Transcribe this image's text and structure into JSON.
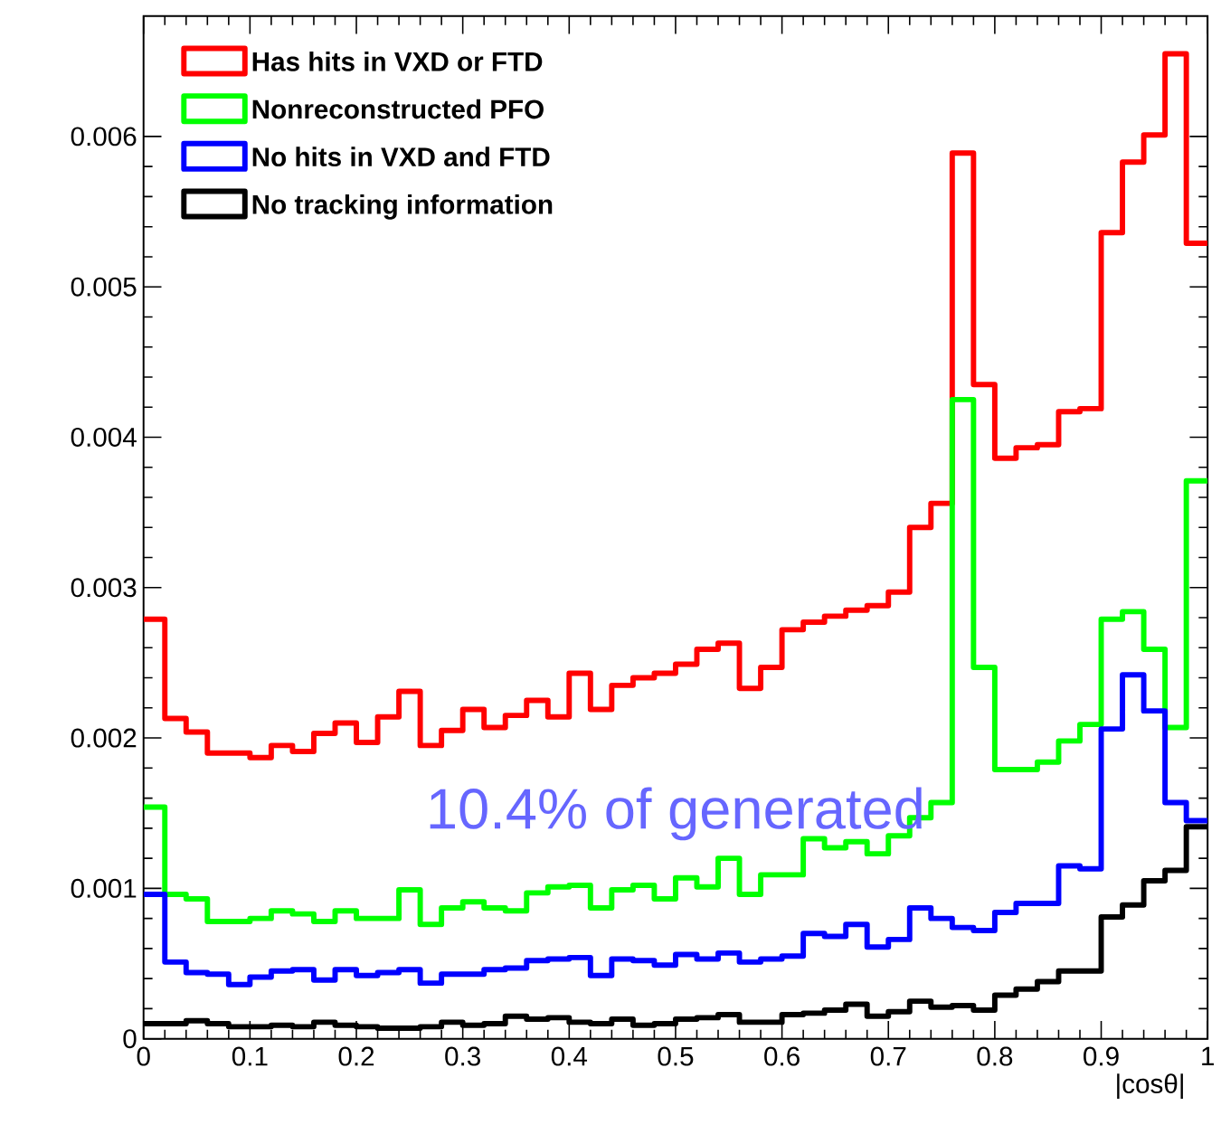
{
  "chart_data": {
    "type": "histogram",
    "xlabel": "|cosθ|",
    "bins": [
      0,
      0.02,
      0.04,
      0.06,
      0.08,
      0.1,
      0.12,
      0.14,
      0.16,
      0.18,
      0.2,
      0.22,
      0.24,
      0.26,
      0.28,
      0.3,
      0.32,
      0.34,
      0.36,
      0.38,
      0.4,
      0.42,
      0.44,
      0.46,
      0.48,
      0.5,
      0.52,
      0.54,
      0.56,
      0.58,
      0.6,
      0.62,
      0.64,
      0.66,
      0.68,
      0.7,
      0.72,
      0.74,
      0.76,
      0.78,
      0.8,
      0.82,
      0.84,
      0.86,
      0.88,
      0.9,
      0.92,
      0.94,
      0.96,
      0.98,
      1
    ],
    "series": [
      {
        "name": "Has hits in VXD or FTD",
        "color": "#ff0000",
        "values": [
          0.00279,
          0.00213,
          0.00204,
          0.0019,
          0.0019,
          0.00187,
          0.00195,
          0.00191,
          0.00203,
          0.0021,
          0.00197,
          0.00214,
          0.00231,
          0.00195,
          0.00205,
          0.00219,
          0.00207,
          0.00215,
          0.00225,
          0.00214,
          0.00243,
          0.00219,
          0.00235,
          0.0024,
          0.00243,
          0.00249,
          0.00259,
          0.00263,
          0.00233,
          0.00247,
          0.00272,
          0.00277,
          0.00281,
          0.00285,
          0.00288,
          0.00297,
          0.0034,
          0.00356,
          0.00589,
          0.00435,
          0.00386,
          0.00393,
          0.00395,
          0.00417,
          0.00419,
          0.00536,
          0.00583,
          0.00601,
          0.00655,
          0.00529
        ]
      },
      {
        "name": "Nonreconstructed PFO",
        "color": "#00ff00",
        "values": [
          0.00154,
          0.00096,
          0.00093,
          0.00078,
          0.00078,
          0.0008,
          0.00085,
          0.00083,
          0.00078,
          0.00085,
          0.0008,
          0.0008,
          0.00099,
          0.00076,
          0.00087,
          0.00091,
          0.00087,
          0.00085,
          0.00097,
          0.00101,
          0.00102,
          0.00087,
          0.00099,
          0.00102,
          0.00093,
          0.00107,
          0.00101,
          0.0012,
          0.00096,
          0.00109,
          0.00109,
          0.00133,
          0.00127,
          0.00131,
          0.00123,
          0.00135,
          0.00147,
          0.00157,
          0.00425,
          0.00247,
          0.00179,
          0.00179,
          0.00184,
          0.00198,
          0.00209,
          0.00279,
          0.00284,
          0.00259,
          0.00207,
          0.00371
        ]
      },
      {
        "name": "No hits in VXD and FTD",
        "color": "#0000ff",
        "values": [
          0.00096,
          0.00051,
          0.00044,
          0.00043,
          0.00036,
          0.00041,
          0.00045,
          0.00046,
          0.00039,
          0.00046,
          0.00042,
          0.00044,
          0.00046,
          0.00037,
          0.00043,
          0.00043,
          0.00046,
          0.00047,
          0.00052,
          0.00053,
          0.00054,
          0.00042,
          0.00053,
          0.00052,
          0.00049,
          0.00056,
          0.00053,
          0.00057,
          0.00051,
          0.00053,
          0.00055,
          0.0007,
          0.00068,
          0.00076,
          0.00061,
          0.00066,
          0.00087,
          0.0008,
          0.00074,
          0.00072,
          0.00084,
          0.0009,
          0.0009,
          0.00115,
          0.00113,
          0.00206,
          0.00242,
          0.00218,
          0.00157,
          0.00145
        ]
      },
      {
        "name": "No tracking information",
        "color": "#000000",
        "values": [
          0.0001,
          0.0001,
          0.00012,
          0.0001,
          8e-05,
          8e-05,
          9e-05,
          8e-05,
          0.00011,
          9e-05,
          8e-05,
          7e-05,
          7e-05,
          8e-05,
          0.00011,
          9e-05,
          0.0001,
          0.00015,
          0.00013,
          0.00014,
          0.00011,
          0.0001,
          0.00013,
          9e-05,
          0.0001,
          0.00013,
          0.00014,
          0.00016,
          0.00011,
          0.00011,
          0.00016,
          0.00017,
          0.00019,
          0.00023,
          0.00015,
          0.00018,
          0.00025,
          0.00021,
          0.00022,
          0.00019,
          0.00029,
          0.00033,
          0.00038,
          0.00045,
          0.00045,
          0.00081,
          0.00089,
          0.00105,
          0.00112,
          0.00141
        ]
      }
    ],
    "xlim": [
      0,
      1
    ],
    "ylim": [
      0,
      0.0068
    ],
    "xticks": [
      0,
      0.1,
      0.2,
      0.3,
      0.4,
      0.5,
      0.6,
      0.7,
      0.8,
      0.9,
      1
    ],
    "yticks": [
      0,
      0.001,
      0.002,
      0.003,
      0.004,
      0.005,
      0.006
    ],
    "annotations": [
      "10.4% of generated"
    ],
    "legend": "top left",
    "grid": false
  }
}
